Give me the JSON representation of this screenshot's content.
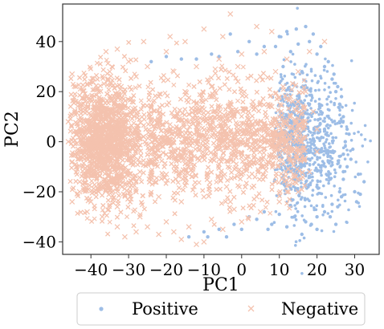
{
  "chart_data": {
    "type": "scatter",
    "title": "",
    "xlabel": "PC1",
    "ylabel": "PC2",
    "xlim": [
      -47.5,
      36.5
    ],
    "ylim": [
      -45,
      55
    ],
    "x_ticks": [
      -40,
      -30,
      -20,
      -10,
      0,
      10,
      20,
      30
    ],
    "x_tick_labels": [
      "−40",
      "−30",
      "−20",
      "−10",
      "0",
      "10",
      "20",
      "30"
    ],
    "y_ticks": [
      -40,
      -20,
      0,
      20,
      40
    ],
    "y_tick_labels": [
      "−40",
      "−20",
      "0",
      "20",
      "40"
    ],
    "grid": false,
    "legend_position": "bottom-outside",
    "series": [
      {
        "name": "Positive",
        "marker": "dot",
        "color": "#9dbde6",
        "points": [
          [
            14.5,
            45.0
          ],
          [
            17.0,
            46.0
          ],
          [
            12.0,
            44.0
          ],
          [
            6.0,
            38.0
          ],
          [
            -1.0,
            36.0
          ],
          [
            -8.0,
            35.0
          ],
          [
            -12.0,
            33.0
          ],
          [
            -16.0,
            33.0
          ],
          [
            2.0,
            40.0
          ],
          [
            10.0,
            42.0
          ],
          [
            18.0,
            40.0
          ],
          [
            20.0,
            35.0
          ],
          [
            22.0,
            30.0
          ],
          [
            24.0,
            25.0
          ],
          [
            25.0,
            20.0
          ],
          [
            26.0,
            15.0
          ],
          [
            27.0,
            10.0
          ],
          [
            28.0,
            5.0
          ],
          [
            27.5,
            0.0
          ],
          [
            27.0,
            -5.0
          ],
          [
            28.0,
            -10.0
          ],
          [
            27.0,
            -15.0
          ],
          [
            26.0,
            -20.0
          ],
          [
            24.0,
            -25.0
          ],
          [
            22.0,
            -28.0
          ],
          [
            20.0,
            -30.0
          ],
          [
            17.0,
            -32.0
          ],
          [
            14.0,
            -30.0
          ],
          [
            10.0,
            -29.0
          ],
          [
            6.0,
            -28.0
          ],
          [
            2.0,
            -30.0
          ],
          [
            -2.0,
            -33.0
          ],
          [
            -6.0,
            -35.0
          ],
          [
            -10.0,
            -36.0
          ],
          [
            -14.0,
            -38.0
          ],
          [
            30.0,
            -20.0
          ],
          [
            31.0,
            -13.0
          ],
          [
            32.5,
            -16.0
          ],
          [
            29.5,
            -3.0
          ],
          [
            25.0,
            -33.0
          ],
          [
            20.0,
            -35.0
          ],
          [
            16.0,
            -37.0
          ],
          [
            -9.0,
            -38.0
          ],
          [
            -3.0,
            43.0
          ],
          [
            23.0,
            32.0
          ],
          [
            21.0,
            38.0
          ],
          [
            19.0,
            43.0
          ],
          [
            15.0,
            39.0
          ],
          [
            13.0,
            36.0
          ],
          [
            28.5,
            3.0
          ],
          [
            29.0,
            -7.0
          ],
          [
            30.5,
            -24.0
          ],
          [
            31.5,
            -21.0
          ],
          [
            23.5,
            -30.0
          ],
          [
            18.5,
            -33.0
          ],
          [
            12.0,
            -34.0
          ],
          [
            8.0,
            -33.0
          ],
          [
            4.0,
            -31.0
          ],
          [
            0.0,
            -35.0
          ],
          [
            -4.0,
            -38.0
          ],
          [
            26.5,
            18.0
          ],
          [
            25.5,
            22.0
          ],
          [
            24.5,
            27.0
          ],
          [
            26.0,
            8.0
          ],
          [
            27.0,
            -12.0
          ],
          [
            26.5,
            -22.0
          ],
          [
            25.5,
            -26.0
          ],
          [
            22.0,
            5.0
          ],
          [
            21.0,
            12.0
          ],
          [
            23.0,
            -8.0
          ],
          [
            20.0,
            -18.0
          ],
          [
            18.0,
            15.0
          ],
          [
            16.0,
            28.0
          ],
          [
            11.0,
            30.0
          ],
          [
            9.0,
            38.0
          ],
          [
            4.0,
            35.0
          ],
          [
            -6.0,
            34.0
          ],
          [
            -20.0,
            34.0
          ],
          [
            -24.0,
            32.0
          ],
          [
            7.0,
            -35.0
          ]
        ]
      },
      {
        "name": "Negative",
        "marker": "x",
        "color": "#f4c2ae",
        "points": [
          [
            -3.0,
            51.0
          ],
          [
            -10.0,
            45.0
          ],
          [
            -19.0,
            42.0
          ],
          [
            -26.0,
            40.0
          ],
          [
            -33.0,
            37.0
          ],
          [
            -36.0,
            36.0
          ],
          [
            -15.0,
            40.0
          ],
          [
            4.0,
            46.0
          ],
          [
            -5.0,
            42.0
          ],
          [
            8.0,
            44.0
          ],
          [
            -40.0,
            24.0
          ],
          [
            -44.0,
            16.0
          ],
          [
            -46.0,
            8.0
          ],
          [
            -46.0,
            0.0
          ],
          [
            -45.0,
            -8.0
          ],
          [
            -43.0,
            -16.0
          ],
          [
            -40.0,
            -24.0
          ],
          [
            -37.0,
            -30.0
          ],
          [
            -33.0,
            -34.0
          ],
          [
            -28.0,
            -36.0
          ],
          [
            -22.0,
            -37.0
          ],
          [
            -16.0,
            -39.0
          ],
          [
            -10.0,
            -40.0
          ],
          [
            -12.0,
            -41.0
          ],
          [
            -5.0,
            -35.0
          ],
          [
            0.0,
            -32.0
          ],
          [
            5.0,
            -28.0
          ],
          [
            10.0,
            -24.0
          ],
          [
            15.0,
            -20.0
          ],
          [
            18.0,
            -12.0
          ],
          [
            20.0,
            -4.0
          ],
          [
            20.0,
            5.0
          ],
          [
            19.0,
            12.0
          ],
          [
            17.0,
            20.0
          ],
          [
            15.0,
            28.0
          ],
          [
            12.0,
            33.0
          ],
          [
            6.0,
            36.0
          ],
          [
            0.0,
            35.0
          ],
          [
            -6.0,
            33.0
          ],
          [
            -12.0,
            30.0
          ],
          [
            -18.0,
            28.0
          ],
          [
            -25.0,
            30.0
          ],
          [
            -30.0,
            32.0
          ],
          [
            -35.0,
            28.0
          ],
          [
            -38.0,
            20.0
          ],
          [
            -42.0,
            12.0
          ],
          [
            -43.0,
            4.0
          ],
          [
            -42.0,
            -4.0
          ],
          [
            -41.0,
            -12.0
          ],
          [
            -38.0,
            -20.0
          ],
          [
            -33.0,
            -26.0
          ],
          [
            -27.0,
            -30.0
          ],
          [
            -20.0,
            -32.0
          ],
          [
            -14.0,
            -34.0
          ],
          [
            -8.0,
            -31.0
          ],
          [
            -2.0,
            -27.0
          ],
          [
            4.0,
            -22.0
          ],
          [
            9.0,
            -16.0
          ],
          [
            13.0,
            -8.0
          ],
          [
            16.0,
            0.0
          ],
          [
            17.0,
            8.0
          ],
          [
            15.0,
            16.0
          ],
          [
            11.0,
            22.0
          ],
          [
            5.0,
            26.0
          ],
          [
            -1.0,
            24.0
          ],
          [
            -8.0,
            22.0
          ],
          [
            -15.0,
            20.0
          ],
          [
            -22.0,
            18.0
          ],
          [
            -29.0,
            16.0
          ],
          [
            -35.0,
            12.0
          ],
          [
            -39.0,
            5.0
          ],
          [
            -40.0,
            -2.0
          ],
          [
            -38.0,
            -10.0
          ],
          [
            -34.0,
            -16.0
          ],
          [
            -28.0,
            -20.0
          ],
          [
            -22.0,
            -22.0
          ],
          [
            -16.0,
            -24.0
          ],
          [
            -10.0,
            -22.0
          ],
          [
            -4.0,
            -18.0
          ],
          [
            2.0,
            -14.0
          ],
          [
            7.0,
            -8.0
          ],
          [
            10.0,
            0.0
          ],
          [
            11.0,
            8.0
          ],
          [
            8.0,
            14.0
          ],
          [
            3.0,
            16.0
          ],
          [
            -3.0,
            15.0
          ],
          [
            -10.0,
            13.0
          ],
          [
            -17.0,
            11.0
          ],
          [
            -24.0,
            9.0
          ],
          [
            -31.0,
            6.0
          ],
          [
            -36.0,
            0.0
          ],
          [
            -37.0,
            -6.0
          ],
          [
            -33.0,
            -10.0
          ],
          [
            -27.0,
            -12.0
          ],
          [
            -20.0,
            -13.0
          ],
          [
            -13.0,
            -12.0
          ],
          [
            -6.0,
            -9.0
          ],
          [
            0.0,
            -5.0
          ],
          [
            5.0,
            0.0
          ],
          [
            6.0,
            7.0
          ],
          [
            2.0,
            9.0
          ],
          [
            -5.0,
            8.0
          ],
          [
            -12.0,
            6.0
          ],
          [
            -19.0,
            4.0
          ],
          [
            -26.0,
            2.0
          ],
          [
            -32.0,
            -2.0
          ],
          [
            -29.0,
            -6.0
          ],
          [
            -23.0,
            -6.0
          ],
          [
            -16.0,
            -5.0
          ],
          [
            -9.0,
            -3.0
          ],
          [
            -3.0,
            0.0
          ],
          [
            -1.0,
            4.0
          ],
          [
            -8.0,
            2.0
          ],
          [
            -15.0,
            0.0
          ],
          [
            -22.0,
            -1.0
          ],
          [
            -28.0,
            1.0
          ],
          [
            -33.0,
            5.0
          ],
          [
            -36.0,
            9.0
          ],
          [
            -38.0,
            14.0
          ],
          [
            -41.0,
            18.0
          ],
          [
            -44.0,
            22.0
          ],
          [
            -45.0,
            27.0
          ],
          [
            -43.0,
            -20.0
          ],
          [
            -45.0,
            -24.0
          ],
          [
            -41.0,
            -28.0
          ],
          [
            -31.0,
            -38.0
          ],
          [
            -25.0,
            -34.0
          ],
          [
            -18.0,
            -36.0
          ],
          [
            22.0,
            40.0
          ],
          [
            18.0,
            36.0
          ],
          [
            -20.0,
            36.0
          ],
          [
            -28.0,
            26.0
          ],
          [
            -32.0,
            22.0
          ],
          [
            13.0,
            18.0
          ],
          [
            -7.0,
            29.0
          ],
          [
            -1.0,
            30.0
          ],
          [
            9.0,
            28.0
          ],
          [
            14.0,
            -14.0
          ],
          [
            12.0,
            -20.0
          ],
          [
            -3.0,
            -24.0
          ]
        ]
      }
    ]
  },
  "legend": {
    "items": [
      {
        "label": "Positive",
        "marker": "dot"
      },
      {
        "label": "Negative",
        "marker": "x"
      }
    ]
  }
}
